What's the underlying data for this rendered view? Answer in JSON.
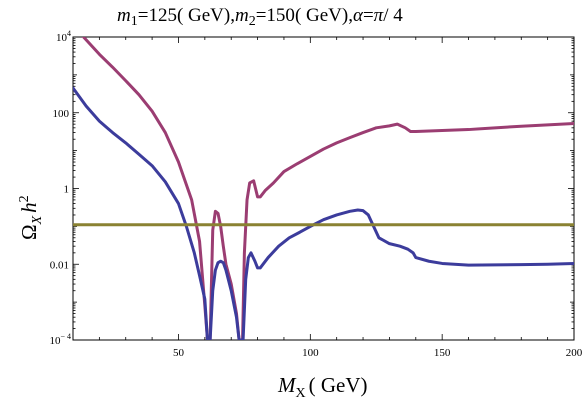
{
  "chart_data": {
    "type": "line",
    "title": "m1=125(GeV), m2=150(GeV), α=π/4",
    "title_parts": {
      "m1": "m",
      "m1_sub": "1",
      "eq1": "=125",
      "unit1": "( GeV)",
      "m2": "m",
      "m2_sub": "2",
      "eq2": "=150",
      "unit2": "( GeV)",
      "alpha": "α",
      "eq3": "=",
      "pi": "π",
      "frac": "/ 4"
    },
    "xlabel": "M_X (GeV)",
    "xlabel_parts": {
      "M": "M",
      "sub": "X",
      "unit": "( GeV)"
    },
    "ylabel": "Ω_X h^2",
    "ylabel_parts": {
      "omega": "Ω",
      "sub": "X",
      "h": "h",
      "sup": "2"
    },
    "xlim": [
      10,
      200
    ],
    "ylim": [
      0.0001,
      10000
    ],
    "yscale": "log",
    "grid": false,
    "x_ticks": [
      {
        "value": 50,
        "label": "50"
      },
      {
        "value": 100,
        "label": "100"
      },
      {
        "value": 150,
        "label": "150"
      },
      {
        "value": 200,
        "label": "200"
      }
    ],
    "y_ticks": [
      {
        "value": 0.0001,
        "base": "10",
        "exp": "− 4"
      },
      {
        "value": 0.01,
        "label": "0.01"
      },
      {
        "value": 1,
        "label": "1"
      },
      {
        "value": 100,
        "label": "100"
      },
      {
        "value": 10000,
        "base": "10",
        "exp": "4"
      }
    ],
    "series": [
      {
        "color": "#9b3d72",
        "points": [
          [
            14,
            10000
          ],
          [
            20,
            3500
          ],
          [
            25,
            1600
          ],
          [
            30,
            700
          ],
          [
            35,
            300
          ],
          [
            40,
            110
          ],
          [
            45,
            30
          ],
          [
            50,
            5
          ],
          [
            55,
            0.5
          ],
          [
            58,
            0.04
          ],
          [
            60,
            0.0008
          ],
          [
            61,
            0.0001
          ],
          [
            62,
            0.0001
          ],
          [
            62.5,
            0.003
          ],
          [
            63,
            0.08
          ],
          [
            64,
            0.25
          ],
          [
            65,
            0.22
          ],
          [
            66,
            0.1
          ],
          [
            67,
            0.03
          ],
          [
            68,
            0.01
          ],
          [
            70,
            0.003
          ],
          [
            72,
            0.0005
          ],
          [
            73,
            0.0001
          ],
          [
            74.3,
            0.0001
          ],
          [
            75,
            0.02
          ],
          [
            76,
            0.5
          ],
          [
            77,
            1.4
          ],
          [
            78.5,
            1.6
          ],
          [
            80,
            0.6
          ],
          [
            81,
            0.6
          ],
          [
            83,
            0.9
          ],
          [
            86,
            1.4
          ],
          [
            90,
            2.8
          ],
          [
            95,
            4.5
          ],
          [
            100,
            7
          ],
          [
            105,
            11
          ],
          [
            110,
            16
          ],
          [
            115,
            22
          ],
          [
            120,
            30
          ],
          [
            125,
            40
          ],
          [
            130,
            45
          ],
          [
            133,
            50
          ],
          [
            136,
            40
          ],
          [
            138,
            32
          ],
          [
            140,
            32
          ],
          [
            150,
            34
          ],
          [
            160,
            36
          ],
          [
            170,
            40
          ],
          [
            180,
            44
          ],
          [
            190,
            48
          ],
          [
            200,
            52
          ]
        ]
      },
      {
        "color": "#3c3c9c",
        "points": [
          [
            10,
            450
          ],
          [
            15,
            150
          ],
          [
            20,
            60
          ],
          [
            25,
            30
          ],
          [
            30,
            16
          ],
          [
            35,
            8
          ],
          [
            40,
            4
          ],
          [
            45,
            1.5
          ],
          [
            50,
            0.4
          ],
          [
            53,
            0.1
          ],
          [
            56,
            0.02
          ],
          [
            58,
            0.005
          ],
          [
            60,
            0.0012
          ],
          [
            61,
            0.0001
          ],
          [
            62,
            0.0001
          ],
          [
            63,
            0.002
          ],
          [
            64,
            0.007
          ],
          [
            65,
            0.011
          ],
          [
            66,
            0.012
          ],
          [
            67,
            0.011
          ],
          [
            68,
            0.007
          ],
          [
            70,
            0.002
          ],
          [
            72,
            0.0004
          ],
          [
            73,
            0.0001
          ],
          [
            74.5,
            0.0001
          ],
          [
            75.5,
            0.004
          ],
          [
            76.5,
            0.015
          ],
          [
            77.5,
            0.02
          ],
          [
            79,
            0.012
          ],
          [
            80,
            0.008
          ],
          [
            81,
            0.008
          ],
          [
            84,
            0.015
          ],
          [
            88,
            0.03
          ],
          [
            92,
            0.05
          ],
          [
            96,
            0.07
          ],
          [
            100,
            0.1
          ],
          [
            105,
            0.15
          ],
          [
            110,
            0.2
          ],
          [
            115,
            0.25
          ],
          [
            118,
            0.27
          ],
          [
            120,
            0.26
          ],
          [
            122,
            0.2
          ],
          [
            124,
            0.1
          ],
          [
            126,
            0.05
          ],
          [
            130,
            0.035
          ],
          [
            134,
            0.03
          ],
          [
            137,
            0.025
          ],
          [
            139,
            0.02
          ],
          [
            140,
            0.015
          ],
          [
            145,
            0.012
          ],
          [
            150,
            0.0105
          ],
          [
            160,
            0.0095
          ],
          [
            170,
            0.0096
          ],
          [
            180,
            0.0098
          ],
          [
            190,
            0.01
          ],
          [
            200,
            0.0105
          ]
        ]
      },
      {
        "color": "#8a8232",
        "points": [
          [
            10,
            0.11
          ],
          [
            200,
            0.11
          ]
        ]
      }
    ]
  }
}
